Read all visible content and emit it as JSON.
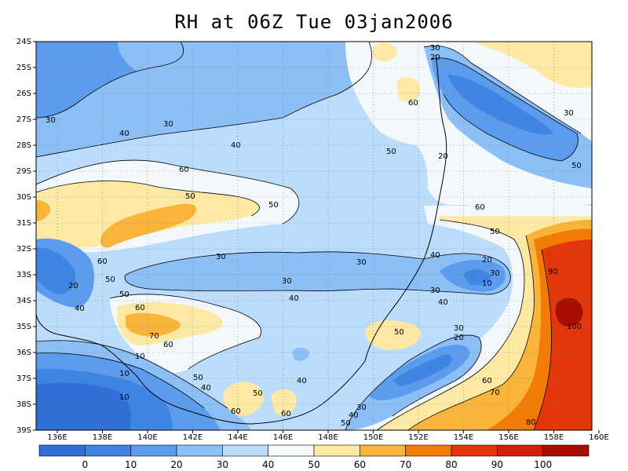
{
  "title": "RH at 06Z Tue 03jan2006",
  "map": {
    "lat_labels": [
      "24S",
      "25S",
      "26S",
      "27S",
      "28S",
      "29S",
      "30S",
      "31S",
      "32S",
      "33S",
      "34S",
      "35S",
      "36S",
      "37S",
      "38S",
      "39S"
    ],
    "lon_labels": [
      "136E",
      "138E",
      "140E",
      "142E",
      "144E",
      "146E",
      "148E",
      "150E",
      "152E",
      "154E",
      "156E",
      "158E",
      "160E"
    ],
    "contour_labels": [
      "30",
      "20",
      "30",
      "60",
      "30",
      "30",
      "40",
      "40",
      "50",
      "20",
      "50",
      "60",
      "50",
      "50",
      "60",
      "50",
      "40",
      "30",
      "30",
      "30",
      "20",
      "10",
      "60",
      "20",
      "50",
      "30",
      "40",
      "30",
      "40",
      "90",
      "50",
      "60",
      "100",
      "40",
      "70",
      "60",
      "50",
      "30",
      "20",
      "10",
      "10",
      "60",
      "10",
      "50",
      "40",
      "50",
      "40",
      "70",
      "60",
      "60",
      "50",
      "40",
      "30",
      "80"
    ],
    "colors": {
      "lt10": "#2f6fd6",
      "10-20": "#3f85e4",
      "20-30": "#5c9cee",
      "30-40": "#8cbff6",
      "40-50": "#bbdcfb",
      "50-60": "#f3f8fd",
      "60-70": "#fde9a3",
      "70-80": "#f9b43a",
      "80-90": "#f27c07",
      "90-100": "#e3370b",
      "gt100": "#a80d02"
    }
  },
  "colorbar": {
    "labels": [
      "0",
      "10",
      "20",
      "30",
      "40",
      "50",
      "60",
      "70",
      "80",
      "90",
      "100"
    ],
    "colors": [
      "#2f6fd6",
      "#3f85e4",
      "#5c9cee",
      "#8cbff6",
      "#bbdcfb",
      "#f3f8fd",
      "#fde9a3",
      "#f9b43a",
      "#f27c07",
      "#e3370b",
      "#cf2107",
      "#a80d02"
    ]
  }
}
